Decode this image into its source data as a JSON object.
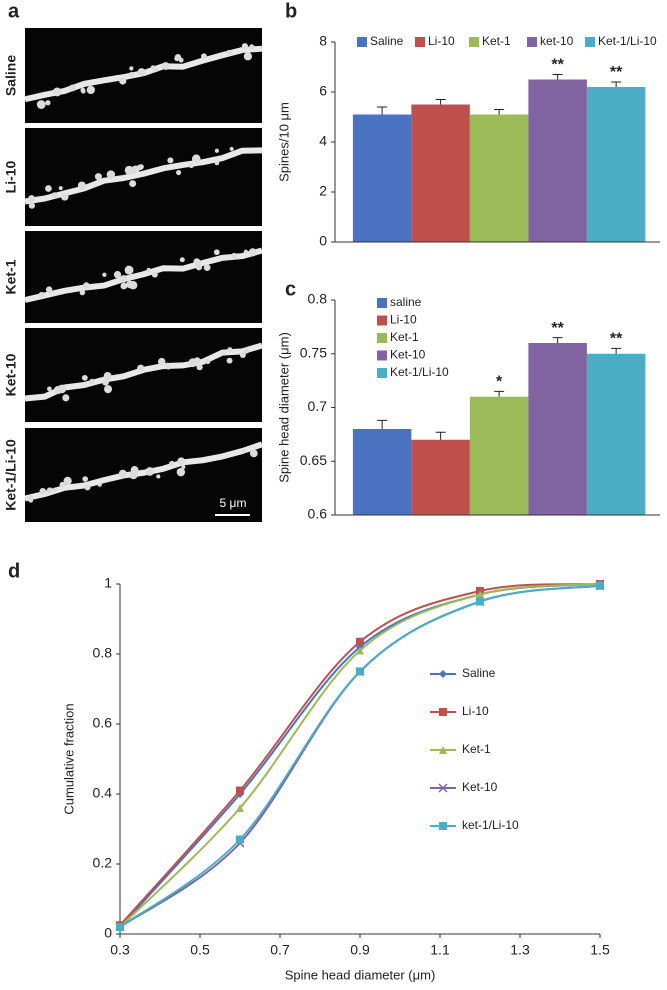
{
  "panel_a": {
    "label": "a",
    "images": [
      "Saline",
      "Li-10",
      "Ket-1",
      "Ket-10",
      "Ket-1/Li-10"
    ],
    "scale_bar": "5 μm"
  },
  "chart_data": [
    {
      "type": "bar",
      "panel": "b",
      "ylabel": "Spines/10 μm",
      "categories": [
        null
      ],
      "ylim": [
        0,
        8
      ],
      "yticks": [
        0,
        2,
        4,
        6,
        8
      ],
      "grid": false,
      "legend": "top",
      "series": [
        {
          "name": "Saline",
          "color": "#4a72c0",
          "values": [
            5.1
          ],
          "errors": [
            0.3
          ]
        },
        {
          "name": "Li-10",
          "color": "#c0504d",
          "values": [
            5.5
          ],
          "errors": [
            0.2
          ]
        },
        {
          "name": "Ket-1",
          "color": "#9bbb59",
          "values": [
            5.1
          ],
          "errors": [
            0.2
          ]
        },
        {
          "name": "ket-10",
          "color": "#8064a2",
          "values": [
            6.5
          ],
          "errors": [
            0.2
          ],
          "annotation": "**"
        },
        {
          "name": "Ket-1/Li-10",
          "color": "#4bacc6",
          "values": [
            6.2
          ],
          "errors": [
            0.2
          ],
          "annotation": "**"
        }
      ]
    },
    {
      "type": "bar",
      "panel": "c",
      "ylabel": "Spine head diameter (μm)",
      "categories": [
        null
      ],
      "ylim": [
        0.6,
        0.8
      ],
      "yticks": [
        0.6,
        0.65,
        0.7,
        0.75,
        0.8
      ],
      "grid": false,
      "legend": "upper left",
      "series": [
        {
          "name": "saline",
          "color": "#4a72c0",
          "values": [
            0.68
          ],
          "errors": [
            0.008
          ]
        },
        {
          "name": "Li-10",
          "color": "#c0504d",
          "values": [
            0.67
          ],
          "errors": [
            0.007
          ]
        },
        {
          "name": "Ket-1",
          "color": "#9bbb59",
          "values": [
            0.71
          ],
          "errors": [
            0.005
          ],
          "annotation": "*"
        },
        {
          "name": "Ket-10",
          "color": "#8064a2",
          "values": [
            0.76
          ],
          "errors": [
            0.005
          ],
          "annotation": "**"
        },
        {
          "name": "Ket-1/Li-10",
          "color": "#4bacc6",
          "values": [
            0.75
          ],
          "errors": [
            0.005
          ],
          "annotation": "**"
        }
      ]
    },
    {
      "type": "line",
      "panel": "d",
      "xlabel": "Spine head diameter (μm)",
      "ylabel": "Cumulative fraction",
      "x": [
        0.3,
        0.6,
        0.9,
        1.2,
        1.5
      ],
      "xlim": [
        0.3,
        1.5
      ],
      "xticks": [
        0.3,
        0.5,
        0.7,
        0.9,
        1.1,
        1.3,
        1.5
      ],
      "ylim": [
        0,
        1
      ],
      "yticks": [
        0,
        0.2,
        0.4,
        0.6,
        0.8,
        1
      ],
      "grid": false,
      "legend": "center right",
      "series": [
        {
          "name": "Saline",
          "color": "#4a72c0",
          "marker": "diamond",
          "values": [
            0.02,
            0.4,
            0.82,
            0.97,
            1.0
          ]
        },
        {
          "name": "Li-10",
          "color": "#c0504d",
          "marker": "square",
          "values": [
            0.025,
            0.41,
            0.835,
            0.98,
            1.0
          ]
        },
        {
          "name": "Ket-1",
          "color": "#9bbb59",
          "marker": "triangle",
          "values": [
            0.02,
            0.36,
            0.81,
            0.97,
            1.0
          ]
        },
        {
          "name": "Ket-10",
          "color": "#8064a2",
          "marker": "x",
          "values": [
            0.02,
            0.26,
            0.75,
            0.95,
            0.995
          ]
        },
        {
          "name": "ket-1/Li-10",
          "color": "#4bacc6",
          "marker": "square",
          "values": [
            0.02,
            0.27,
            0.75,
            0.95,
            0.995
          ]
        }
      ]
    }
  ]
}
